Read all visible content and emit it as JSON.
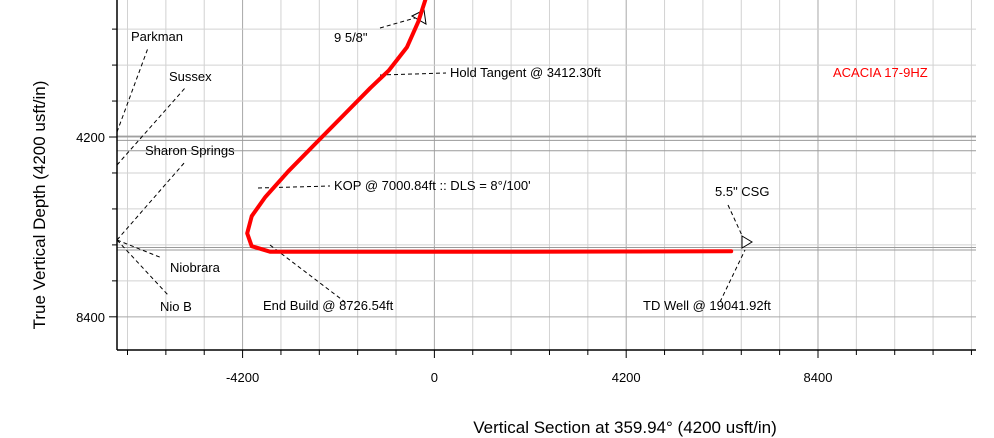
{
  "chart_data": {
    "type": "line",
    "xlabel": "Vertical Section at 359.94° (4200 usft/in)",
    "ylabel": "True Vertical Depth (4200 usft/in)",
    "xlim": [
      -6950,
      11860
    ],
    "ylim": [
      9175,
      1000
    ],
    "y_inverted": true,
    "grid": true,
    "x_ticks": [
      -4200,
      0,
      4200,
      8400
    ],
    "y_ticks": [
      4200,
      8400
    ],
    "well_label": "ACACIA 17-9HZ",
    "well_color": "#ff0000",
    "series": [
      {
        "color": "#ff0000",
        "x": [
          -200,
          -350,
          -600,
          -1000,
          -1400,
          -2000,
          -2600,
          -3200,
          -3700,
          -4000,
          -4100,
          -4000,
          -3600,
          0,
          2000,
          4200,
          6500
        ],
        "y": [
          1000,
          1500,
          2100,
          2650,
          3050,
          3700,
          4350,
          5000,
          5600,
          6050,
          6450,
          6750,
          6880,
          6880,
          6880,
          6875,
          6870
        ]
      }
    ],
    "formation_lines": [
      {
        "y": 4180
      },
      {
        "y": 4280
      },
      {
        "y": 4520
      },
      {
        "y": 6780
      },
      {
        "y": 6840
      }
    ],
    "formations": [
      {
        "name": "Parkman",
        "label": "Parkman"
      },
      {
        "name": "Sussex",
        "label": "Sussex"
      },
      {
        "name": "Sharon Springs",
        "label": "Sharon Springs"
      },
      {
        "name": "Niobrara",
        "label": "Niobrara"
      },
      {
        "name": "Nio B",
        "label": "Nio B"
      }
    ],
    "annotations": [
      {
        "text": "9 5/8\""
      },
      {
        "text": "Hold Tangent @ 3412.30ft"
      },
      {
        "text": "KOP @ 7000.84ft :: DLS = 8°/100'"
      },
      {
        "text": "End Build @ 8726.54ft"
      },
      {
        "text": "5.5\" CSG"
      },
      {
        "text": "TD Well @ 19041.92ft"
      }
    ]
  }
}
